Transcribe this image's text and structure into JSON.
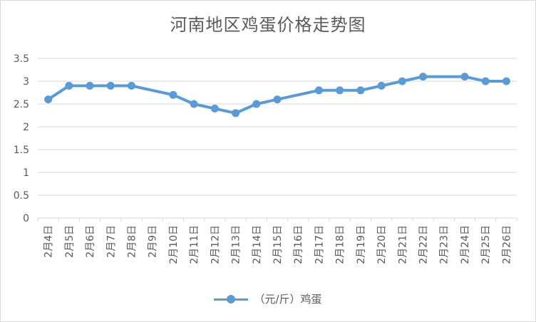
{
  "chart_data": {
    "type": "line",
    "title": "河南地区鸡蛋价格走势图",
    "categories": [
      "2月4日",
      "2月5日",
      "2月6日",
      "2月7日",
      "2月8日",
      "2月9日",
      "2月10日",
      "2月11日",
      "2月12日",
      "2月13日",
      "2月14日",
      "2月15日",
      "2月16日",
      "2月17日",
      "2月18日",
      "2月19日",
      "2月20日",
      "2月21日",
      "2月22日",
      "2月23日",
      "2月24日",
      "2月25日",
      "2月26日"
    ],
    "series": [
      {
        "name": "（元/斤）鸡蛋",
        "values": [
          2.6,
          2.9,
          2.9,
          2.9,
          2.9,
          null,
          2.7,
          2.5,
          2.4,
          2.3,
          2.5,
          2.6,
          null,
          2.8,
          2.8,
          2.8,
          2.9,
          3.0,
          3.1,
          null,
          3.1,
          3.0,
          3.0
        ]
      }
    ],
    "ylim": [
      0,
      3.5
    ],
    "yticks": [
      "0",
      "0.5",
      "1",
      "1.5",
      "2",
      "2.5",
      "3",
      "3.5"
    ],
    "grid": true,
    "legend_position": "bottom",
    "colors": {
      "series": "#5b9bd5",
      "grid": "#d9d9d9",
      "text": "#595959"
    }
  }
}
